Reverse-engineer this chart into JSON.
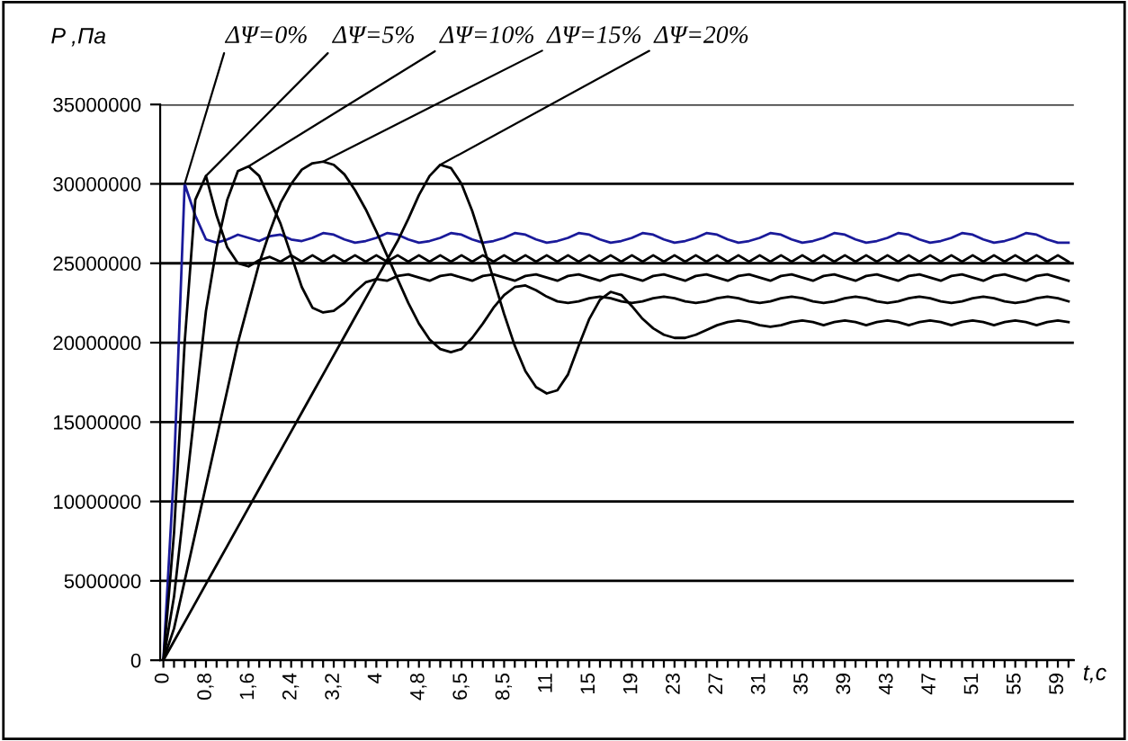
{
  "chart_data": {
    "type": "line",
    "ylabel": "P ,Па",
    "xlabel": "t,c",
    "categories": [
      "0",
      null,
      null,
      null,
      "0,8",
      null,
      null,
      null,
      "1,6",
      null,
      null,
      null,
      "2,4",
      null,
      null,
      null,
      "3,2",
      null,
      null,
      null,
      "4",
      null,
      null,
      null,
      "4,8",
      null,
      null,
      null,
      "6,5",
      null,
      null,
      null,
      "8,5",
      null,
      null,
      null,
      "11",
      null,
      null,
      null,
      "15",
      null,
      null,
      null,
      "19",
      null,
      null,
      null,
      "23",
      null,
      null,
      null,
      "27",
      null,
      null,
      null,
      "31",
      null,
      null,
      null,
      "35",
      null,
      null,
      null,
      "39",
      null,
      null,
      null,
      "43",
      null,
      null,
      null,
      "47",
      null,
      null,
      null,
      "51",
      null,
      null,
      null,
      "55",
      null,
      null,
      null,
      "59",
      null
    ],
    "ylim": [
      0,
      35000000
    ],
    "yticks": [
      0,
      5000000,
      10000000,
      15000000,
      20000000,
      25000000,
      30000000,
      35000000
    ],
    "grid": "y",
    "marker": "none",
    "line_style": "solid",
    "series": [
      {
        "name": "ΔΨ=0%",
        "color": "#1a1a9a",
        "values": [
          0,
          12000000.0,
          30000000.0,
          28000000.0,
          26500000.0,
          26300000.0,
          26500000.0,
          26800000.0,
          26600000.0,
          26400000.0,
          26700000.0,
          26800000.0,
          26500000.0,
          26400000.0,
          26600000.0,
          26900000.0,
          26800000.0,
          26500000.0,
          26300000.0,
          26400000.0,
          26600000.0,
          26900000.0,
          26800000.0,
          26500000.0,
          26300000.0,
          26400000.0,
          26600000.0,
          26900000.0,
          26800000.0,
          26500000.0,
          26300000.0,
          26400000.0,
          26600000.0,
          26900000.0,
          26800000.0,
          26500000.0,
          26300000.0,
          26400000.0,
          26600000.0,
          26900000.0,
          26800000.0,
          26500000.0,
          26300000.0,
          26400000.0,
          26600000.0,
          26900000.0,
          26800000.0,
          26500000.0,
          26300000.0,
          26400000.0,
          26600000.0,
          26900000.0,
          26800000.0,
          26500000.0,
          26300000.0,
          26400000.0,
          26600000.0,
          26900000.0,
          26800000.0,
          26500000.0,
          26300000.0,
          26400000.0,
          26600000.0,
          26900000.0,
          26800000.0,
          26500000.0,
          26300000.0,
          26400000.0,
          26600000.0,
          26900000.0,
          26800000.0,
          26500000.0,
          26300000.0,
          26400000.0,
          26600000.0,
          26900000.0,
          26800000.0,
          26500000.0,
          26300000.0,
          26400000.0,
          26600000.0,
          26900000.0,
          26800000.0,
          26500000.0,
          26300000.0,
          26300000.0
        ]
      },
      {
        "name": "ΔΨ=5%",
        "color": "#000000",
        "values": [
          0,
          8000000.0,
          20000000.0,
          29000000.0,
          30500000.0,
          28000000.0,
          26000000.0,
          25000000.0,
          24800000.0,
          25200000.0,
          25400000.0,
          25100000.0,
          25500000.0,
          25100000.0,
          25500000.0,
          25100000.0,
          25500000.0,
          25100000.0,
          25500000.0,
          25100000.0,
          25500000.0,
          25100000.0,
          25500000.0,
          25100000.0,
          25500000.0,
          25100000.0,
          25500000.0,
          25100000.0,
          25500000.0,
          25100000.0,
          25500000.0,
          25100000.0,
          25500000.0,
          25100000.0,
          25500000.0,
          25100000.0,
          25500000.0,
          25100000.0,
          25500000.0,
          25100000.0,
          25500000.0,
          25100000.0,
          25500000.0,
          25100000.0,
          25500000.0,
          25100000.0,
          25500000.0,
          25100000.0,
          25500000.0,
          25100000.0,
          25500000.0,
          25100000.0,
          25500000.0,
          25100000.0,
          25500000.0,
          25100000.0,
          25500000.0,
          25100000.0,
          25500000.0,
          25100000.0,
          25500000.0,
          25100000.0,
          25500000.0,
          25100000.0,
          25500000.0,
          25100000.0,
          25500000.0,
          25100000.0,
          25500000.0,
          25100000.0,
          25500000.0,
          25100000.0,
          25500000.0,
          25100000.0,
          25500000.0,
          25100000.0,
          25500000.0,
          25100000.0,
          25500000.0,
          25100000.0,
          25500000.0,
          25100000.0,
          25500000.0,
          25100000.0,
          25500000.0,
          25100000.0
        ]
      },
      {
        "name": "ΔΨ=10%",
        "color": "#000000",
        "values": [
          0,
          4000000.0,
          10000000.0,
          16000000.0,
          22000000.0,
          26000000.0,
          29000000.0,
          30800000.0,
          31100000.0,
          30500000.0,
          29000000.0,
          27500000.0,
          25500000.0,
          23500000.0,
          22200000.0,
          21900000.0,
          22000000.0,
          22500000.0,
          23200000.0,
          23800000.0,
          24000000.0,
          23900000.0,
          24200000.0,
          24300000.0,
          24100000.0,
          23900000.0,
          24200000.0,
          24300000.0,
          24100000.0,
          23900000.0,
          24200000.0,
          24300000.0,
          24100000.0,
          23900000.0,
          24200000.0,
          24300000.0,
          24100000.0,
          23900000.0,
          24200000.0,
          24300000.0,
          24100000.0,
          23900000.0,
          24200000.0,
          24300000.0,
          24100000.0,
          23900000.0,
          24200000.0,
          24300000.0,
          24100000.0,
          23900000.0,
          24200000.0,
          24300000.0,
          24100000.0,
          23900000.0,
          24200000.0,
          24300000.0,
          24100000.0,
          23900000.0,
          24200000.0,
          24300000.0,
          24100000.0,
          23900000.0,
          24200000.0,
          24300000.0,
          24100000.0,
          23900000.0,
          24200000.0,
          24300000.0,
          24100000.0,
          23900000.0,
          24200000.0,
          24300000.0,
          24100000.0,
          23900000.0,
          24200000.0,
          24300000.0,
          24100000.0,
          23900000.0,
          24200000.0,
          24300000.0,
          24100000.0,
          23900000.0,
          24200000.0,
          24300000.0,
          24100000.0,
          23900000.0
        ]
      },
      {
        "name": "ΔΨ=15%",
        "color": "#000000",
        "values": [
          0,
          2000000.0,
          5000000.0,
          8000000.0,
          11000000.0,
          14000000.0,
          17000000.0,
          20000000.0,
          22500000.0,
          25000000.0,
          27000000.0,
          28800000.0,
          30000000.0,
          30900000.0,
          31300000.0,
          31400000.0,
          31200000.0,
          30600000.0,
          29600000.0,
          28400000.0,
          27000000.0,
          25500000.0,
          24000000.0,
          22500000.0,
          21200000.0,
          20200000.0,
          19600000.0,
          19400000.0,
          19600000.0,
          20300000.0,
          21200000.0,
          22200000.0,
          23000000.0,
          23500000.0,
          23600000.0,
          23300000.0,
          22900000.0,
          22600000.0,
          22500000.0,
          22600000.0,
          22800000.0,
          22900000.0,
          22800000.0,
          22600000.0,
          22500000.0,
          22600000.0,
          22800000.0,
          22900000.0,
          22800000.0,
          22600000.0,
          22500000.0,
          22600000.0,
          22800000.0,
          22900000.0,
          22800000.0,
          22600000.0,
          22500000.0,
          22600000.0,
          22800000.0,
          22900000.0,
          22800000.0,
          22600000.0,
          22500000.0,
          22600000.0,
          22800000.0,
          22900000.0,
          22800000.0,
          22600000.0,
          22500000.0,
          22600000.0,
          22800000.0,
          22900000.0,
          22800000.0,
          22600000.0,
          22500000.0,
          22600000.0,
          22800000.0,
          22900000.0,
          22800000.0,
          22600000.0,
          22500000.0,
          22600000.0,
          22800000.0,
          22900000.0,
          22800000.0,
          22600000.0
        ]
      },
      {
        "name": "ΔΨ=20%",
        "color": "#000000",
        "values": [
          0,
          1200000.0,
          2400000.0,
          3600000.0,
          4800000.0,
          6000000.0,
          7200000.0,
          8400000.0,
          9600000.0,
          10800000.0,
          12000000.0,
          13200000.0,
          14400000.0,
          15600000.0,
          16800000.0,
          18000000.0,
          19200000.0,
          20400000.0,
          21600000.0,
          22800000.0,
          24000000.0,
          25200000.0,
          26400000.0,
          27800000.0,
          29300000.0,
          30500000.0,
          31200000.0,
          31000000.0,
          30000000.0,
          28300000.0,
          26200000.0,
          24000000.0,
          21800000.0,
          19800000.0,
          18200000.0,
          17200000.0,
          16800000.0,
          17000000.0,
          18000000.0,
          19800000.0,
          21500000.0,
          22700000.0,
          23200000.0,
          23000000.0,
          22300000.0,
          21500000.0,
          20900000.0,
          20500000.0,
          20300000.0,
          20300000.0,
          20500000.0,
          20800000.0,
          21100000.0,
          21300000.0,
          21400000.0,
          21300000.0,
          21100000.0,
          21000000.0,
          21100000.0,
          21300000.0,
          21400000.0,
          21300000.0,
          21100000.0,
          21300000.0,
          21400000.0,
          21300000.0,
          21100000.0,
          21300000.0,
          21400000.0,
          21300000.0,
          21100000.0,
          21300000.0,
          21400000.0,
          21300000.0,
          21100000.0,
          21300000.0,
          21400000.0,
          21300000.0,
          21100000.0,
          21300000.0,
          21400000.0,
          21300000.0,
          21100000.0,
          21300000.0,
          21400000.0,
          21300000.0
        ]
      }
    ]
  }
}
